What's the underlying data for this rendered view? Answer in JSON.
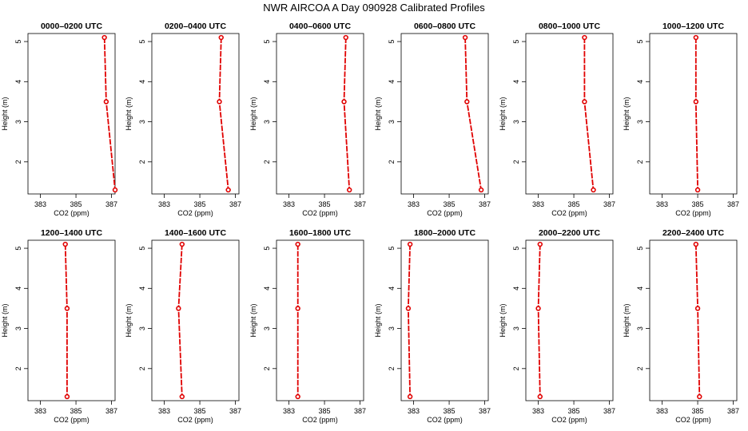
{
  "title": "NWR AIRCOA A  Day 090928  Calibrated Profiles",
  "colors": {
    "series": "#e00000",
    "axes": "#000000",
    "background": "#ffffff"
  },
  "chart_data": [
    {
      "type": "line",
      "title": "0000–0200 UTC",
      "xlabel": "CO2 (ppm)",
      "ylabel": "Height (m)",
      "xlim": [
        382.3,
        387.2
      ],
      "ylim": [
        1.2,
        5.2
      ],
      "xticks": [
        "383",
        "385",
        "387"
      ],
      "yticks": [
        "2",
        "3",
        "4",
        "5"
      ],
      "x": [
        386.6,
        386.7,
        387.2
      ],
      "y": [
        5.1,
        3.5,
        1.3
      ]
    },
    {
      "type": "line",
      "title": "0200–0400 UTC",
      "xlabel": "CO2 (ppm)",
      "ylabel": "Height (m)",
      "xlim": [
        382.3,
        387.2
      ],
      "ylim": [
        1.2,
        5.2
      ],
      "xticks": [
        "383",
        "385",
        "387"
      ],
      "yticks": [
        "2",
        "3",
        "4",
        "5"
      ],
      "x": [
        386.2,
        386.1,
        386.6
      ],
      "y": [
        5.1,
        3.5,
        1.3
      ]
    },
    {
      "type": "line",
      "title": "0400–0600 UTC",
      "xlabel": "CO2 (ppm)",
      "ylabel": "Height (m)",
      "xlim": [
        382.3,
        387.2
      ],
      "ylim": [
        1.2,
        5.2
      ],
      "xticks": [
        "383",
        "385",
        "387"
      ],
      "yticks": [
        "2",
        "3",
        "4",
        "5"
      ],
      "x": [
        386.2,
        386.1,
        386.4
      ],
      "y": [
        5.1,
        3.5,
        1.3
      ]
    },
    {
      "type": "line",
      "title": "0600–0800 UTC",
      "xlabel": "CO2 (ppm)",
      "ylabel": "Height (m)",
      "xlim": [
        382.3,
        387.2
      ],
      "ylim": [
        1.2,
        5.2
      ],
      "xticks": [
        "383",
        "385",
        "387"
      ],
      "yticks": [
        "2",
        "3",
        "4",
        "5"
      ],
      "x": [
        385.9,
        386.0,
        386.8
      ],
      "y": [
        5.1,
        3.5,
        1.3
      ]
    },
    {
      "type": "line",
      "title": "0800–1000 UTC",
      "xlabel": "CO2 (ppm)",
      "ylabel": "Height (m)",
      "xlim": [
        382.3,
        387.2
      ],
      "ylim": [
        1.2,
        5.2
      ],
      "xticks": [
        "383",
        "385",
        "387"
      ],
      "yticks": [
        "2",
        "3",
        "4",
        "5"
      ],
      "x": [
        385.6,
        385.6,
        386.1
      ],
      "y": [
        5.1,
        3.5,
        1.3
      ]
    },
    {
      "type": "line",
      "title": "1000–1200 UTC",
      "xlabel": "CO2 (ppm)",
      "ylabel": "Height (m)",
      "xlim": [
        382.3,
        387.2
      ],
      "ylim": [
        1.2,
        5.2
      ],
      "xticks": [
        "383",
        "385",
        "387"
      ],
      "yticks": [
        "2",
        "3",
        "4",
        "5"
      ],
      "x": [
        384.9,
        384.9,
        385.0
      ],
      "y": [
        5.1,
        3.5,
        1.3
      ]
    },
    {
      "type": "line",
      "title": "1200–1400 UTC",
      "xlabel": "CO2 (ppm)",
      "ylabel": "Height (m)",
      "xlim": [
        382.3,
        387.2
      ],
      "ylim": [
        1.2,
        5.2
      ],
      "xticks": [
        "383",
        "385",
        "387"
      ],
      "yticks": [
        "2",
        "3",
        "4",
        "5"
      ],
      "x": [
        384.4,
        384.5,
        384.5
      ],
      "y": [
        5.1,
        3.5,
        1.3
      ]
    },
    {
      "type": "line",
      "title": "1400–1600 UTC",
      "xlabel": "CO2 (ppm)",
      "ylabel": "Height (m)",
      "xlim": [
        382.3,
        387.2
      ],
      "ylim": [
        1.2,
        5.2
      ],
      "xticks": [
        "383",
        "385",
        "387"
      ],
      "yticks": [
        "2",
        "3",
        "4",
        "5"
      ],
      "x": [
        384.0,
        383.8,
        384.0
      ],
      "y": [
        5.1,
        3.5,
        1.3
      ]
    },
    {
      "type": "line",
      "title": "1600–1800 UTC",
      "xlabel": "CO2 (ppm)",
      "ylabel": "Height (m)",
      "xlim": [
        382.3,
        387.2
      ],
      "ylim": [
        1.2,
        5.2
      ],
      "xticks": [
        "383",
        "385",
        "387"
      ],
      "yticks": [
        "2",
        "3",
        "4",
        "5"
      ],
      "x": [
        383.5,
        383.5,
        383.5
      ],
      "y": [
        5.1,
        3.5,
        1.3
      ]
    },
    {
      "type": "line",
      "title": "1800–2000 UTC",
      "xlabel": "CO2 (ppm)",
      "ylabel": "Height (m)",
      "xlim": [
        382.3,
        387.2
      ],
      "ylim": [
        1.2,
        5.2
      ],
      "xticks": [
        "383",
        "385",
        "387"
      ],
      "yticks": [
        "2",
        "3",
        "4",
        "5"
      ],
      "x": [
        382.8,
        382.7,
        382.8
      ],
      "y": [
        5.1,
        3.5,
        1.3
      ]
    },
    {
      "type": "line",
      "title": "2000–2200 UTC",
      "xlabel": "CO2 (ppm)",
      "ylabel": "Height (m)",
      "xlim": [
        382.3,
        387.2
      ],
      "ylim": [
        1.2,
        5.2
      ],
      "xticks": [
        "383",
        "385",
        "387"
      ],
      "yticks": [
        "2",
        "3",
        "4",
        "5"
      ],
      "x": [
        383.1,
        383.0,
        383.1
      ],
      "y": [
        5.1,
        3.5,
        1.3
      ]
    },
    {
      "type": "line",
      "title": "2200–2400 UTC",
      "xlabel": "CO2 (ppm)",
      "ylabel": "Height (m)",
      "xlim": [
        382.3,
        387.2
      ],
      "ylim": [
        1.2,
        5.2
      ],
      "xticks": [
        "383",
        "385",
        "387"
      ],
      "yticks": [
        "2",
        "3",
        "4",
        "5"
      ],
      "x": [
        384.9,
        385.0,
        385.1
      ],
      "y": [
        5.1,
        3.5,
        1.3
      ]
    }
  ]
}
